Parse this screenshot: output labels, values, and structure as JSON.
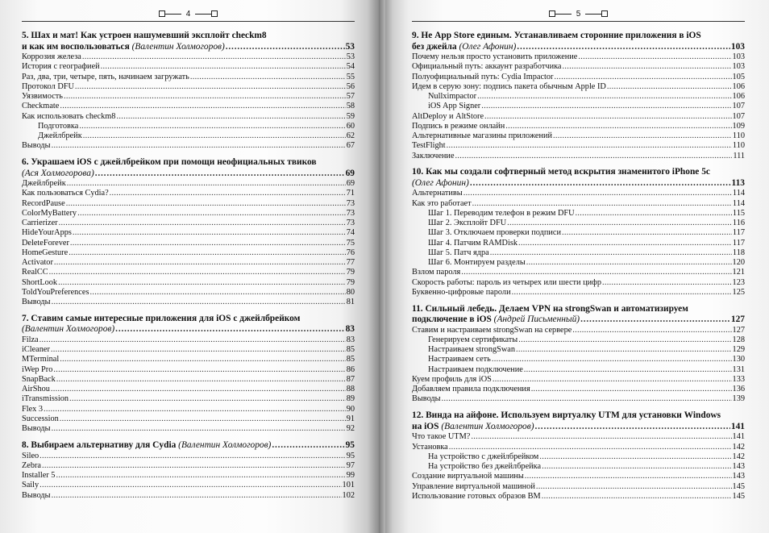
{
  "pages": [
    {
      "number": "4",
      "sections": [
        {
          "title_line1": "5. Шах и мат! Как устроен нашумевший эксплойт checkm8",
          "title_line2": "и как им воспользоваться",
          "author": "(Валентин Холмогоров)",
          "page": "53",
          "entries": [
            {
              "label": "Коррозия железа",
              "page": "53"
            },
            {
              "label": "История с географией",
              "page": "54"
            },
            {
              "label": "Раз, два, три, четыре, пять, начинаем загружать",
              "page": "55"
            },
            {
              "label": "Протокол DFU",
              "page": "56"
            },
            {
              "label": "Уязвимость",
              "page": "57"
            },
            {
              "label": "Checkmate",
              "page": "58"
            },
            {
              "label": "Как использовать checkm8",
              "page": "59"
            },
            {
              "label": "Подготовка",
              "page": "60",
              "indent": true
            },
            {
              "label": "Джейлбрейк",
              "page": "62",
              "indent": true
            },
            {
              "label": "Выводы",
              "page": "67"
            }
          ]
        },
        {
          "title_line1": "6. Украшаем iOS с джейлбрейком при помощи неофициальных твиков",
          "title_line2": "",
          "author": "(Ася Холмогорова)",
          "page": "69",
          "entries": [
            {
              "label": "Джейлбрейк",
              "page": "69"
            },
            {
              "label": "Как пользоваться Cydia?",
              "page": "71"
            },
            {
              "label": "RecordPause",
              "page": "73"
            },
            {
              "label": "ColorMyBattery",
              "page": "73"
            },
            {
              "label": "Carrierizer",
              "page": "73"
            },
            {
              "label": "HideYourApps",
              "page": "74"
            },
            {
              "label": "DeleteForever",
              "page": "75"
            },
            {
              "label": "HomeGesture",
              "page": "76"
            },
            {
              "label": "Activator",
              "page": "77"
            },
            {
              "label": "RealCC",
              "page": "79"
            },
            {
              "label": "ShortLook",
              "page": "79"
            },
            {
              "label": "ToldYouPreferences",
              "page": "80"
            },
            {
              "label": "Выводы",
              "page": "81"
            }
          ]
        },
        {
          "title_line1": "7. Ставим самые интересные приложения для iOS с джейлбрейком",
          "title_line2": "",
          "author": "(Валентин Холмогоров)",
          "page": "83",
          "entries": [
            {
              "label": "Filza",
              "page": "83"
            },
            {
              "label": "iCleaner",
              "page": "85"
            },
            {
              "label": "MTerminal",
              "page": "85"
            },
            {
              "label": "iWep Pro",
              "page": "86"
            },
            {
              "label": "SnapBack",
              "page": "87"
            },
            {
              "label": "AirShou",
              "page": "88"
            },
            {
              "label": "iTransmission",
              "page": "89"
            },
            {
              "label": "Flex 3",
              "page": "90"
            },
            {
              "label": "Succession",
              "page": "91"
            },
            {
              "label": "Выводы",
              "page": "92"
            }
          ]
        },
        {
          "title_line1": "",
          "title_line2": "8. Выбираем альтернативу для Cydia",
          "author": "(Валентин Холмогоров)",
          "page": "95",
          "entries": [
            {
              "label": "Sileo",
              "page": "95"
            },
            {
              "label": "Zebra",
              "page": "97"
            },
            {
              "label": "Installer 5",
              "page": "99"
            },
            {
              "label": "Saily",
              "page": "101"
            },
            {
              "label": "Выводы",
              "page": "102"
            }
          ]
        }
      ]
    },
    {
      "number": "5",
      "sections": [
        {
          "title_line1": "9. Не App Store единым. Устанавливаем сторонние приложения в iOS",
          "title_line2": "без джейла",
          "author": "(Олег Афонин)",
          "page": "103",
          "entries": [
            {
              "label": "Почему нельзя просто установить приложение",
              "page": "103"
            },
            {
              "label": "Официальный путь: аккаунт разработчика",
              "page": "103"
            },
            {
              "label": "Полуофициальный путь: Cydia Impactor",
              "page": "105"
            },
            {
              "label": "Идем в серую зону: подпись пакета обычным Apple ID",
              "page": "106"
            },
            {
              "label": "Nullximpactor",
              "page": "106",
              "indent": true
            },
            {
              "label": "iOS App Signer",
              "page": "107",
              "indent": true
            },
            {
              "label": "AltDeploy и AltStore",
              "page": "107"
            },
            {
              "label": "Подпись в режиме онлайн",
              "page": "109"
            },
            {
              "label": "Альтернативные магазины приложений",
              "page": "110"
            },
            {
              "label": "TestFlight",
              "page": "110"
            },
            {
              "label": "Заключение",
              "page": "111"
            }
          ]
        },
        {
          "title_line1": "10. Как мы создали софтверный метод вскрытия знаменитого iPhone 5c",
          "title_line2": "",
          "author": "(Олег Афонин)",
          "page": "113",
          "entries": [
            {
              "label": "Альтернативы",
              "page": "114"
            },
            {
              "label": "Как это работает",
              "page": "114"
            },
            {
              "label": "Шаг 1. Переводим телефон в режим DFU",
              "page": "115",
              "indent": true
            },
            {
              "label": "Шаг 2. Эксплойт DFU",
              "page": "116",
              "indent": true
            },
            {
              "label": "Шаг 3. Отключаем проверки подписи",
              "page": "117",
              "indent": true
            },
            {
              "label": "Шаг 4. Патчим RAMDisk",
              "page": "117",
              "indent": true
            },
            {
              "label": "Шаг 5. Патч ядра",
              "page": "118",
              "indent": true
            },
            {
              "label": "Шаг 6. Монтируем разделы",
              "page": "120",
              "indent": true
            },
            {
              "label": "Взлом пароля",
              "page": "121"
            },
            {
              "label": "Скорость работы: пароль из четырех или шести цифр",
              "page": "123"
            },
            {
              "label": "Буквенно-цифровые пароли",
              "page": "125"
            }
          ]
        },
        {
          "title_line1": "11. Сильный лебедь. Делаем VPN на strongSwan и автоматизируем",
          "title_line2": "подключение в iOS",
          "author": "(Андрей Письменный)",
          "page": "127",
          "entries": [
            {
              "label": "Ставим и настраиваем strongSwan на сервере",
              "page": "127"
            },
            {
              "label": "Генерируем сертификаты",
              "page": "128",
              "indent": true
            },
            {
              "label": "Настраиваем strongSwan",
              "page": "129",
              "indent": true
            },
            {
              "label": "Настраиваем сеть",
              "page": "130",
              "indent": true
            },
            {
              "label": "Настраиваем подключение",
              "page": "131",
              "indent": true
            },
            {
              "label": "Куем профиль для iOS",
              "page": "133"
            },
            {
              "label": "Добавляем правила подключения",
              "page": "136"
            },
            {
              "label": "Выводы",
              "page": "139"
            }
          ]
        },
        {
          "title_line1": "12. Винда на айфоне. Используем виртуалку UTM для установки Windows",
          "title_line2": "на iOS",
          "author": "(Валентин Холмогоров)",
          "page": "141",
          "entries": [
            {
              "label": "Что такое UTM?",
              "page": "141"
            },
            {
              "label": "Установка",
              "page": "142"
            },
            {
              "label": "На устройство с джейлбрейком",
              "page": "142",
              "indent": true
            },
            {
              "label": "На устройство без джейлбрейка",
              "page": "143",
              "indent": true
            },
            {
              "label": "Создание виртуальной машины",
              "page": "143"
            },
            {
              "label": "Управление виртуальной машиной",
              "page": "145"
            },
            {
              "label": "Использование готовых образов ВМ",
              "page": "145"
            }
          ]
        }
      ]
    }
  ]
}
